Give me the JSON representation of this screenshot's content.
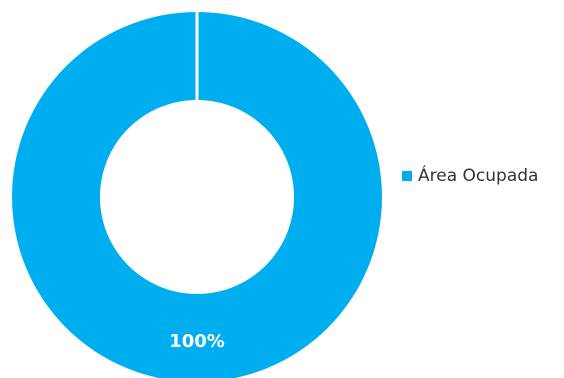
{
  "chart_data": {
    "type": "pie",
    "variant": "donut",
    "title": "",
    "categories": [
      "Área Ocupada"
    ],
    "values": [
      100
    ],
    "data_labels": [
      "100%"
    ],
    "colors": [
      "#00AEEF"
    ],
    "legend": {
      "placement": "right",
      "entries": [
        "Área Ocupada"
      ]
    },
    "slice_separator_color": "#ffffff"
  }
}
